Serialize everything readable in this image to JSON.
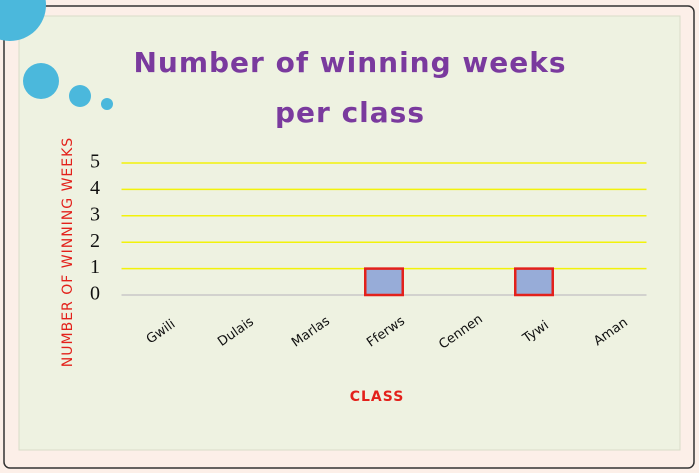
{
  "chart_data": {
    "type": "bar",
    "title": "Number of winning weeks per class",
    "y_label": "NUMBER OF WINNING WEEKS",
    "x_label": "CLASS",
    "categories": [
      "Gwili",
      "Dulais",
      "Marlas",
      "Fferws",
      "Cennen",
      "Tywi",
      "Aman"
    ],
    "values": [
      0,
      0,
      0,
      1,
      0,
      1,
      0
    ],
    "color": "#97acd8",
    "edge_color": "#e3211b",
    "ylim": [
      0,
      5
    ],
    "yticks": [
      0,
      1,
      2,
      3,
      4,
      5
    ],
    "grid": true,
    "grid_color": "#f2f20a"
  }
}
